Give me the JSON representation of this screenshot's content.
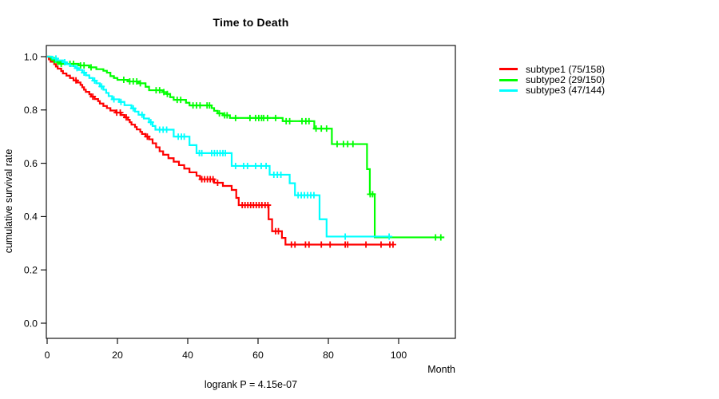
{
  "title": "Time to Death",
  "subtitle": "logrank P = 4.15e-07",
  "y_axis_label": "cumulative survival rate",
  "x_axis_label": "Month",
  "colors": {
    "subtype1": "#FF0000",
    "subtype2": "#00FF00",
    "subtype3": "#00FFFF",
    "axis": "#000000",
    "background": "#FFFFFF"
  },
  "legend": {
    "position": "right-outside",
    "items": [
      {
        "label": "subtype1 (75/158)",
        "color": "#FF0000"
      },
      {
        "label": "subtype2 (29/150)",
        "color": "#00FF00"
      },
      {
        "label": "subtype3 (47/144)",
        "color": "#00FFFF"
      }
    ]
  },
  "chart_data": {
    "type": "line",
    "variant": "kaplan-meier-step",
    "title": "Time to Death",
    "xlabel": "Month",
    "ylabel": "cumulative survival rate",
    "annotation": "logrank P = 4.15e-07",
    "xlim": [
      0,
      116
    ],
    "ylim": [
      0,
      1.04
    ],
    "x_ticks": [
      0,
      20,
      40,
      60,
      80,
      100
    ],
    "y_tick_labels": [
      "0.0",
      "0.2",
      "0.4",
      "0.6",
      "0.8",
      "1.0"
    ],
    "grid": false,
    "series": [
      {
        "name": "subtype1 (75/158)",
        "events": 75,
        "n": 158,
        "color": "#FF0000",
        "end_month": 98.5,
        "steps": [
          [
            0,
            1
          ],
          [
            0.5,
            0.99
          ],
          [
            1,
            0.981
          ],
          [
            2,
            0.972
          ],
          [
            2.5,
            0.963
          ],
          [
            3,
            0.955
          ],
          [
            4,
            0.946
          ],
          [
            4.5,
            0.937
          ],
          [
            5.5,
            0.929
          ],
          [
            6.5,
            0.92
          ],
          [
            7.5,
            0.911
          ],
          [
            8.5,
            0.903
          ],
          [
            9.5,
            0.894
          ],
          [
            10,
            0.885
          ],
          [
            10.5,
            0.876
          ],
          [
            11,
            0.868
          ],
          [
            12,
            0.859
          ],
          [
            12.5,
            0.85
          ],
          [
            13.5,
            0.841
          ],
          [
            14.5,
            0.833
          ],
          [
            15,
            0.824
          ],
          [
            16,
            0.815
          ],
          [
            17,
            0.807
          ],
          [
            18,
            0.798
          ],
          [
            19.5,
            0.79
          ],
          [
            21,
            0.781
          ],
          [
            22,
            0.772
          ],
          [
            23,
            0.763
          ],
          [
            23.5,
            0.754
          ],
          [
            24,
            0.745
          ],
          [
            25,
            0.736
          ],
          [
            25.5,
            0.727
          ],
          [
            26.5,
            0.718
          ],
          [
            27,
            0.71
          ],
          [
            28,
            0.7
          ],
          [
            29,
            0.69
          ],
          [
            30,
            0.675
          ],
          [
            31,
            0.66
          ],
          [
            32,
            0.645
          ],
          [
            33,
            0.632
          ],
          [
            34.5,
            0.619
          ],
          [
            36,
            0.606
          ],
          [
            37.5,
            0.593
          ],
          [
            39,
            0.58
          ],
          [
            40.5,
            0.566
          ],
          [
            42.5,
            0.553
          ],
          [
            43.5,
            0.54
          ],
          [
            47.5,
            0.527
          ],
          [
            50,
            0.515
          ],
          [
            52.5,
            0.5
          ],
          [
            53.8,
            0.47
          ],
          [
            54.5,
            0.443
          ],
          [
            63,
            0.39
          ],
          [
            64,
            0.345
          ],
          [
            66.8,
            0.32
          ],
          [
            67.8,
            0.295
          ]
        ],
        "censor_months": [
          8.2,
          13,
          19.8,
          20.8,
          22.5,
          28.5,
          44,
          44.8,
          45.6,
          46.4,
          47.2,
          48.5,
          55.5,
          56.3,
          57.1,
          57.9,
          58.7,
          59.5,
          60.3,
          61.1,
          62,
          62.8,
          65,
          65.8,
          69.5,
          70.5,
          73.5,
          74.5,
          78,
          80.5,
          84.8,
          85.5,
          90.7,
          95,
          97.5,
          98.4
        ]
      },
      {
        "name": "subtype2 (29/150)",
        "events": 29,
        "n": 150,
        "color": "#00FF00",
        "end_month": 113,
        "steps": [
          [
            0,
            1
          ],
          [
            1,
            0.993
          ],
          [
            2,
            0.987
          ],
          [
            2.8,
            0.98
          ],
          [
            3.5,
            0.973
          ],
          [
            9,
            0.967
          ],
          [
            12,
            0.96
          ],
          [
            14,
            0.953
          ],
          [
            16,
            0.947
          ],
          [
            17,
            0.94
          ],
          [
            18,
            0.927
          ],
          [
            19,
            0.92
          ],
          [
            20,
            0.913
          ],
          [
            23,
            0.907
          ],
          [
            26,
            0.9
          ],
          [
            28,
            0.887
          ],
          [
            29,
            0.874
          ],
          [
            33,
            0.867
          ],
          [
            34,
            0.86
          ],
          [
            35,
            0.848
          ],
          [
            36,
            0.838
          ],
          [
            39.5,
            0.827
          ],
          [
            40.5,
            0.817
          ],
          [
            46.8,
            0.807
          ],
          [
            47.5,
            0.797
          ],
          [
            48.5,
            0.787
          ],
          [
            50,
            0.78
          ],
          [
            52,
            0.77
          ],
          [
            67,
            0.758
          ],
          [
            76,
            0.73
          ],
          [
            81,
            0.672
          ],
          [
            91,
            0.578
          ],
          [
            91.8,
            0.484
          ],
          [
            93.2,
            0.322
          ]
        ],
        "censor_months": [
          2,
          3,
          4,
          6.5,
          7.5,
          9.5,
          10.5,
          12.5,
          21.8,
          23.5,
          24.5,
          25.5,
          26.5,
          31,
          32,
          33.2,
          34.2,
          37,
          38,
          41.5,
          42.5,
          43.5,
          45.5,
          46.2,
          49,
          50.5,
          51.2,
          53.6,
          57.7,
          59.3,
          60.2,
          61,
          61.6,
          62.7,
          65,
          68,
          69,
          72.5,
          73.6,
          74.5,
          76.5,
          78,
          79.5,
          82.5,
          84.3,
          85.5,
          87,
          91.9,
          92.6,
          110.5,
          112
        ]
      },
      {
        "name": "subtype3 (47/144)",
        "events": 47,
        "n": 144,
        "color": "#00FFFF",
        "end_month": 97.5,
        "steps": [
          [
            0,
            1
          ],
          [
            1.5,
            0.993
          ],
          [
            3,
            0.986
          ],
          [
            4.5,
            0.979
          ],
          [
            5.5,
            0.972
          ],
          [
            6.5,
            0.965
          ],
          [
            8,
            0.957
          ],
          [
            9,
            0.95
          ],
          [
            10,
            0.94
          ],
          [
            11,
            0.93
          ],
          [
            12,
            0.92
          ],
          [
            13,
            0.91
          ],
          [
            14,
            0.9
          ],
          [
            15,
            0.888
          ],
          [
            16,
            0.876
          ],
          [
            16.8,
            0.864
          ],
          [
            17.5,
            0.852
          ],
          [
            18.5,
            0.84
          ],
          [
            20.5,
            0.83
          ],
          [
            22,
            0.818
          ],
          [
            24,
            0.806
          ],
          [
            25,
            0.794
          ],
          [
            26,
            0.782
          ],
          [
            27.5,
            0.768
          ],
          [
            29,
            0.754
          ],
          [
            30,
            0.74
          ],
          [
            30.8,
            0.726
          ],
          [
            36,
            0.7
          ],
          [
            40.5,
            0.668
          ],
          [
            42.5,
            0.638
          ],
          [
            52.5,
            0.59
          ],
          [
            63.3,
            0.557
          ],
          [
            69,
            0.525
          ],
          [
            70.5,
            0.48
          ],
          [
            77.5,
            0.39
          ],
          [
            79.5,
            0.325
          ]
        ],
        "censor_months": [
          2.5,
          5,
          8.5,
          10.5,
          13.5,
          15.5,
          19,
          21,
          24.5,
          27,
          29.5,
          32,
          33,
          34,
          37.3,
          38.2,
          39,
          43.3,
          44,
          46.8,
          47.6,
          48.4,
          49.2,
          50,
          50.7,
          53.6,
          55.9,
          57,
          59.3,
          60.9,
          62.3,
          64.5,
          65.5,
          66.5,
          71.4,
          72.3,
          73.2,
          74.1,
          75,
          75.9,
          84.8,
          97.3
        ]
      }
    ]
  }
}
